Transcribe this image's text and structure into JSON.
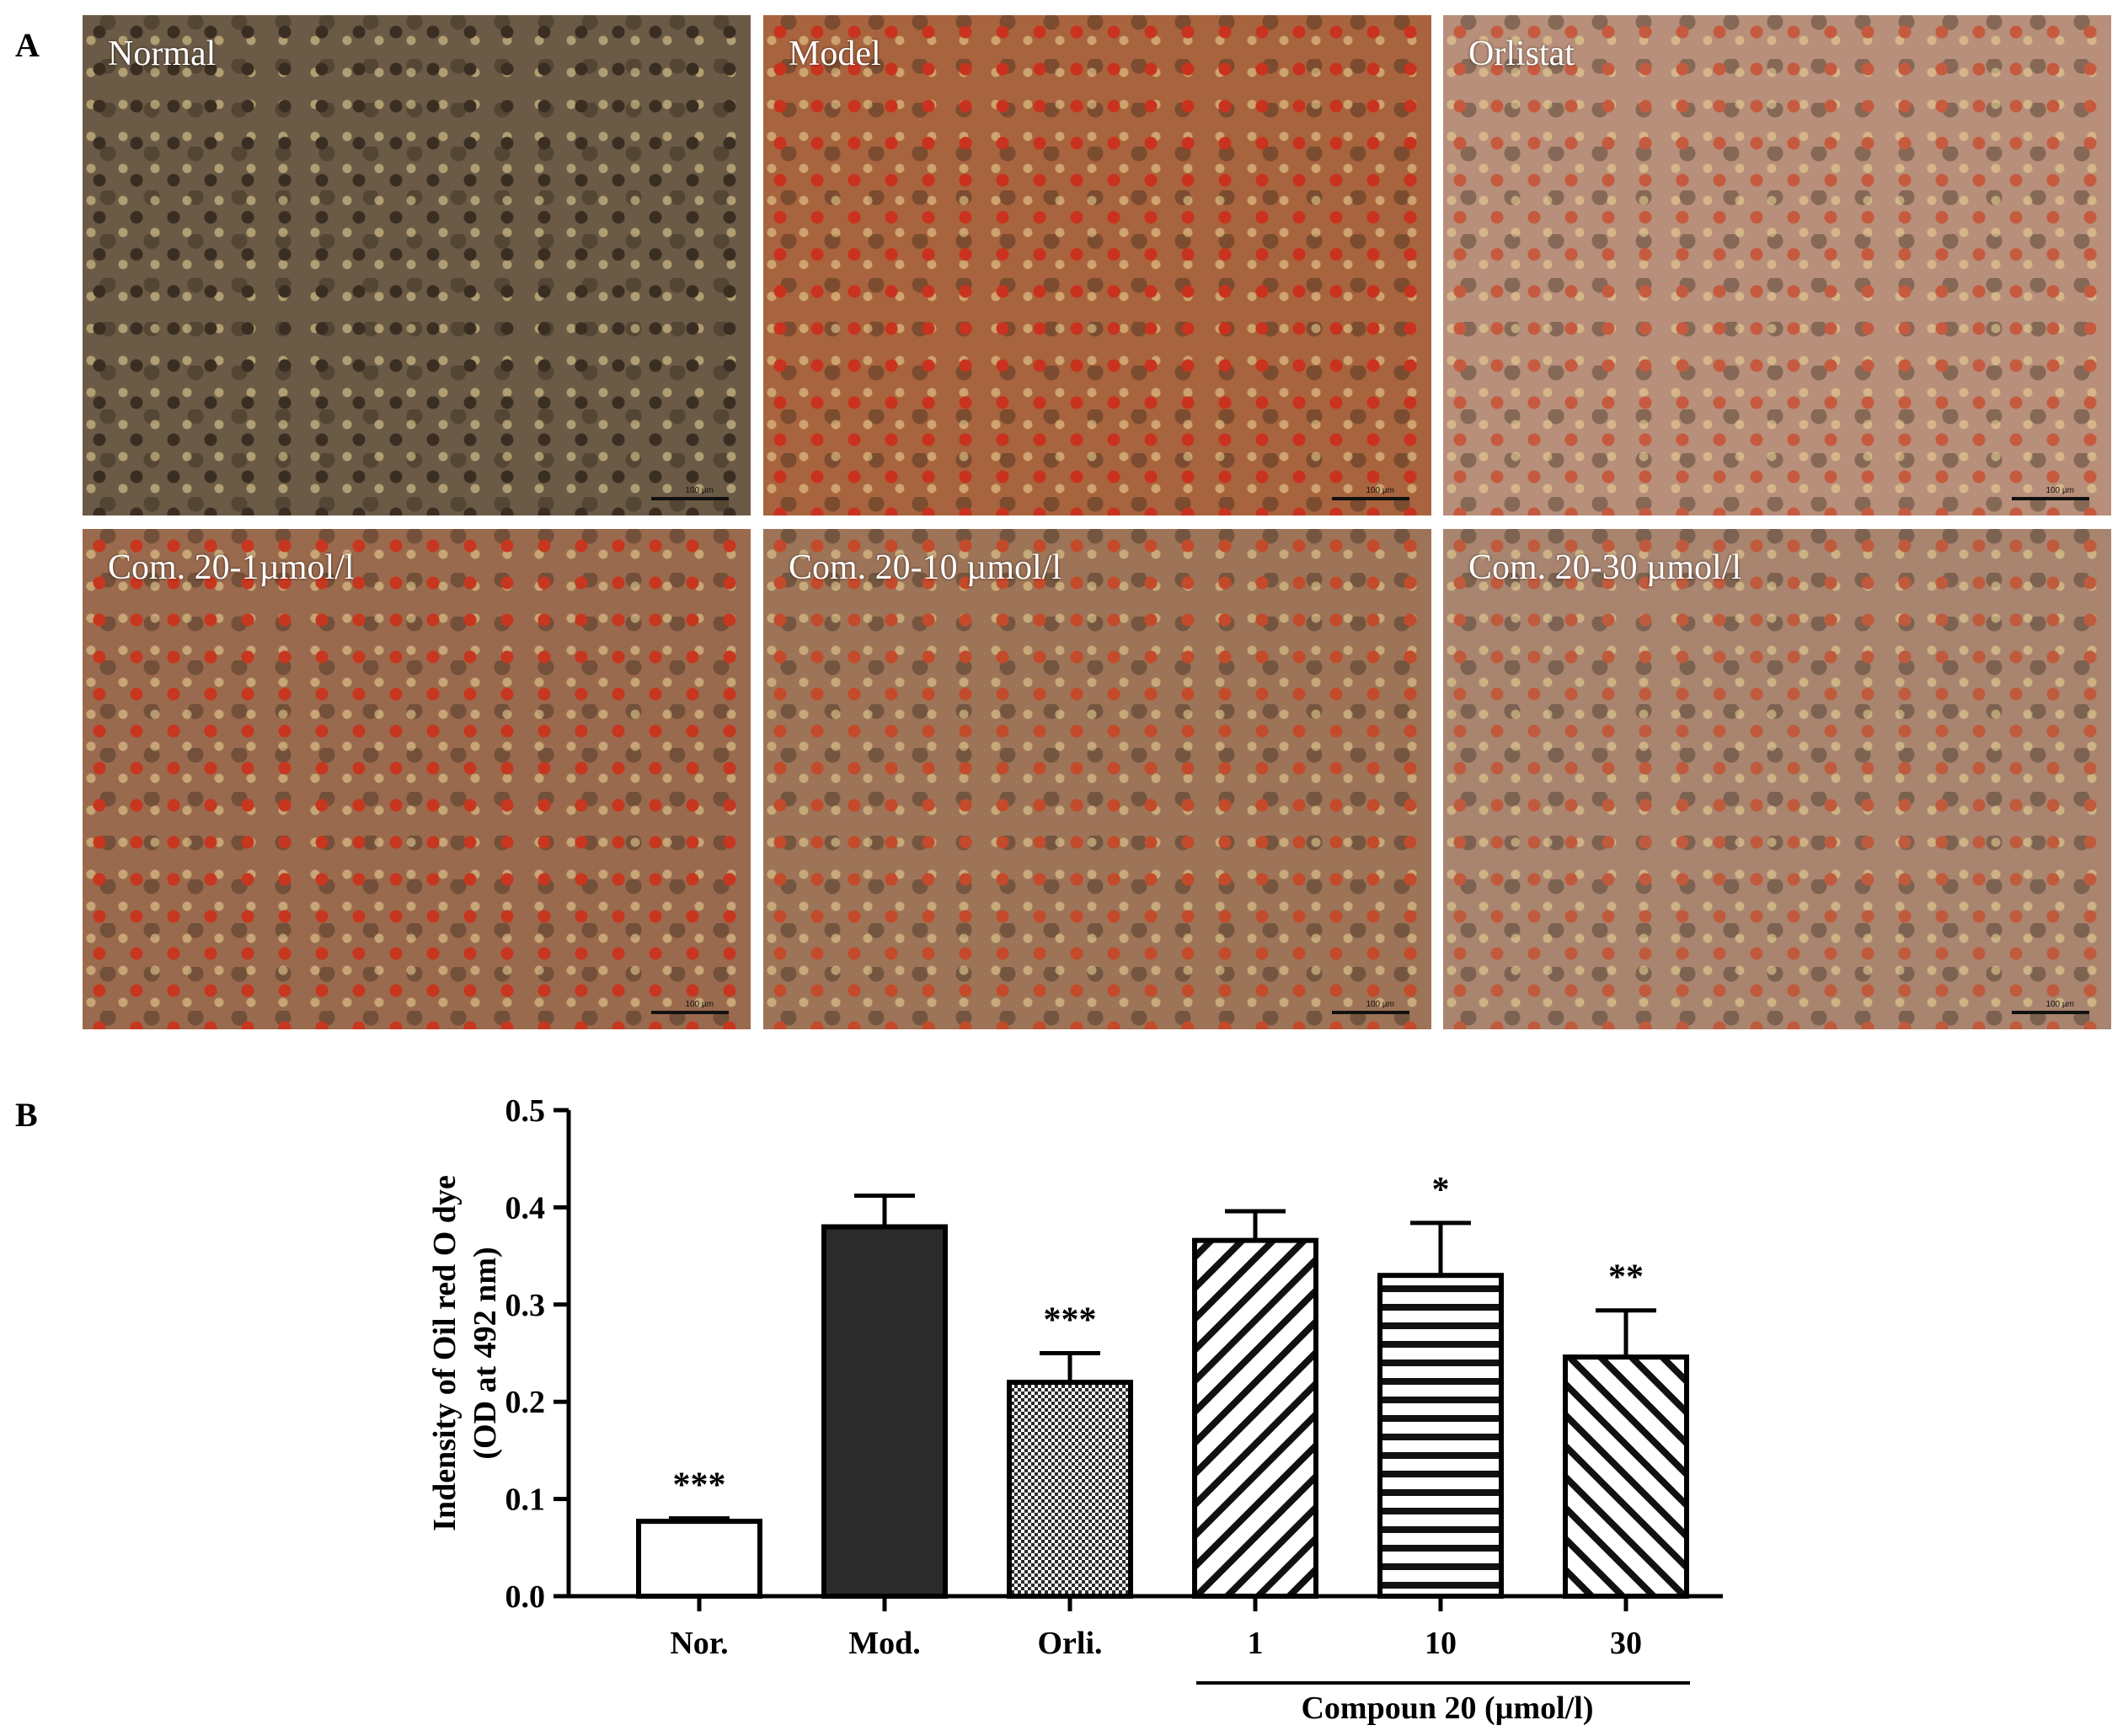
{
  "panel_a": {
    "letter": "A",
    "images": [
      {
        "label": "Normal",
        "bg": "#6b5a46",
        "stain": "#3a2e22"
      },
      {
        "label": "Model",
        "bg": "#a8643e",
        "stain": "#c9321e"
      },
      {
        "label": "Orlistat",
        "bg": "#b78f7a",
        "stain": "#c65a3e"
      },
      {
        "label": "Com. 20-1µmol/l",
        "bg": "#9a6a4e",
        "stain": "#c7361f"
      },
      {
        "label": "Com. 20-10 µmol/l",
        "bg": "#9d7458",
        "stain": "#c34a2a"
      },
      {
        "label": "Com. 20-30 µmol/l",
        "bg": "#a98570",
        "stain": "#c05a3c"
      }
    ],
    "scale_text": "100 µm"
  },
  "panel_b": {
    "letter": "B"
  },
  "chart_data": {
    "type": "bar",
    "categories": [
      "Nor.",
      "Mod.",
      "Orli.",
      "1",
      "10",
      "30"
    ],
    "values": [
      0.077,
      0.38,
      0.22,
      0.366,
      0.33,
      0.246
    ],
    "errors": [
      0.003,
      0.032,
      0.03,
      0.03,
      0.054,
      0.048
    ],
    "significance": [
      "***",
      "",
      "***",
      "",
      "*",
      "**"
    ],
    "patterns": [
      "white",
      "dark",
      "checker",
      "diag-up",
      "horizontal",
      "diag-down"
    ],
    "ylabel_line1": "Indensity of Oil red O dye",
    "ylabel_line2": "(OD at 492 nm)",
    "ylim": [
      0,
      0.5
    ],
    "yticks": [
      "0.0",
      "0.1",
      "0.2",
      "0.3",
      "0.4",
      "0.5"
    ],
    "group_label": "Compoun 20 (µmol/l)",
    "colors": {
      "dark": "#2b2b2b",
      "stroke": "#000000"
    }
  }
}
